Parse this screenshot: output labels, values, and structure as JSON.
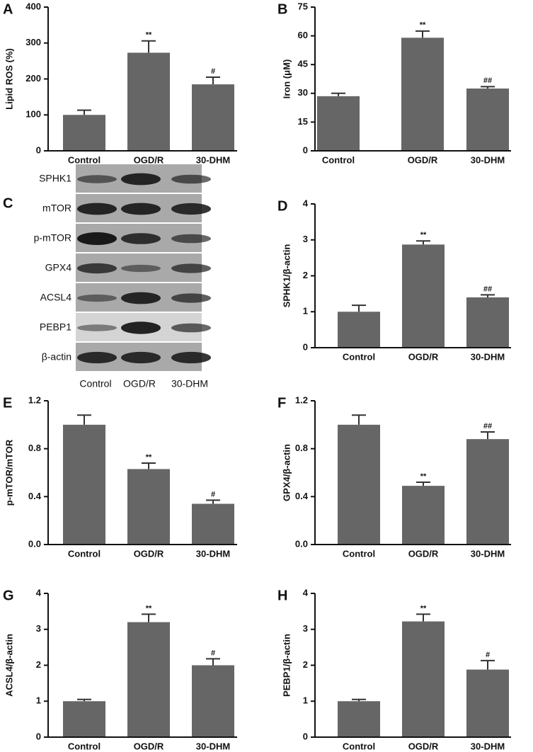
{
  "chart_data": [
    {
      "type": "bar",
      "panel": "A",
      "ylabel": "Lipid ROS (%)",
      "categories": [
        "Control",
        "OGD/R",
        "30-DHM"
      ],
      "values": [
        100,
        273,
        185
      ],
      "errors": [
        13,
        33,
        20
      ],
      "annotations": [
        null,
        "**",
        "#"
      ],
      "color": "#666666",
      "ylim": [
        0,
        400
      ],
      "yticks": [
        0,
        100,
        200,
        300,
        400
      ]
    },
    {
      "type": "bar",
      "panel": "B",
      "ylabel": "Iron (μM)",
      "categories": [
        "Control",
        "OGD/R",
        "30-DHM"
      ],
      "values": [
        28.5,
        59,
        32.5
      ],
      "errors": [
        1.5,
        3.5,
        1
      ],
      "annotations": [
        null,
        "**",
        "##"
      ],
      "color": "#666666",
      "ylim": [
        0,
        75
      ],
      "yticks": [
        0,
        15,
        30,
        45,
        60,
        75
      ]
    },
    {
      "type": "blot",
      "panel": "C",
      "rows": [
        "SPHK1",
        "mTOR",
        "p-mTOR",
        "GPX4",
        "ACSL4",
        "PEBP1",
        "β-actin"
      ],
      "categories": [
        "Control",
        "OGD/R",
        "30-DHM"
      ]
    },
    {
      "type": "bar",
      "panel": "D",
      "ylabel": "SPHK1/β-actin",
      "categories": [
        "Control",
        "OGD/R",
        "30-DHM"
      ],
      "values": [
        1.0,
        2.87,
        1.4
      ],
      "errors": [
        0.18,
        0.1,
        0.07
      ],
      "annotations": [
        null,
        "**",
        "##"
      ],
      "color": "#666666",
      "ylim": [
        0,
        4
      ],
      "yticks": [
        0,
        1,
        2,
        3,
        4
      ]
    },
    {
      "type": "bar",
      "panel": "E",
      "ylabel": "p-mTOR/mTOR",
      "categories": [
        "Control",
        "OGD/R",
        "30-DHM"
      ],
      "values": [
        1.0,
        0.63,
        0.34
      ],
      "errors": [
        0.08,
        0.05,
        0.03
      ],
      "annotations": [
        null,
        "**",
        "#"
      ],
      "color": "#666666",
      "ylim": [
        0,
        1.2
      ],
      "yticks": [
        {
          "value": 0,
          "label": "0.0"
        },
        0.4,
        0.8,
        1.2
      ]
    },
    {
      "type": "bar",
      "panel": "F",
      "ylabel": "GPX4/β-actin",
      "categories": [
        "Control",
        "OGD/R",
        "30-DHM"
      ],
      "values": [
        1.0,
        0.49,
        0.88
      ],
      "errors": [
        0.08,
        0.03,
        0.06
      ],
      "annotations": [
        null,
        "**",
        "##"
      ],
      "color": "#666666",
      "ylim": [
        0,
        1.2
      ],
      "yticks": [
        {
          "value": 0,
          "label": "0.0"
        },
        0.4,
        0.8,
        1.2
      ]
    },
    {
      "type": "bar",
      "panel": "G",
      "ylabel": "ACSL4/β-actin",
      "categories": [
        "Control",
        "OGD/R",
        "30-DHM"
      ],
      "values": [
        1.0,
        3.2,
        2.0
      ],
      "errors": [
        0.05,
        0.22,
        0.18
      ],
      "annotations": [
        null,
        "**",
        "#"
      ],
      "color": "#666666",
      "ylim": [
        0,
        4
      ],
      "yticks": [
        0,
        1,
        2,
        3,
        4
      ]
    },
    {
      "type": "bar",
      "panel": "H",
      "ylabel": "PEBP1/β-actin",
      "categories": [
        "Control",
        "OGD/R",
        "30-DHM"
      ],
      "values": [
        1.0,
        3.22,
        1.88
      ],
      "errors": [
        0.05,
        0.2,
        0.25
      ],
      "annotations": [
        null,
        "**",
        "#"
      ],
      "color": "#666666",
      "ylim": [
        0,
        4
      ],
      "yticks": [
        0,
        1,
        2,
        3,
        4
      ]
    }
  ]
}
